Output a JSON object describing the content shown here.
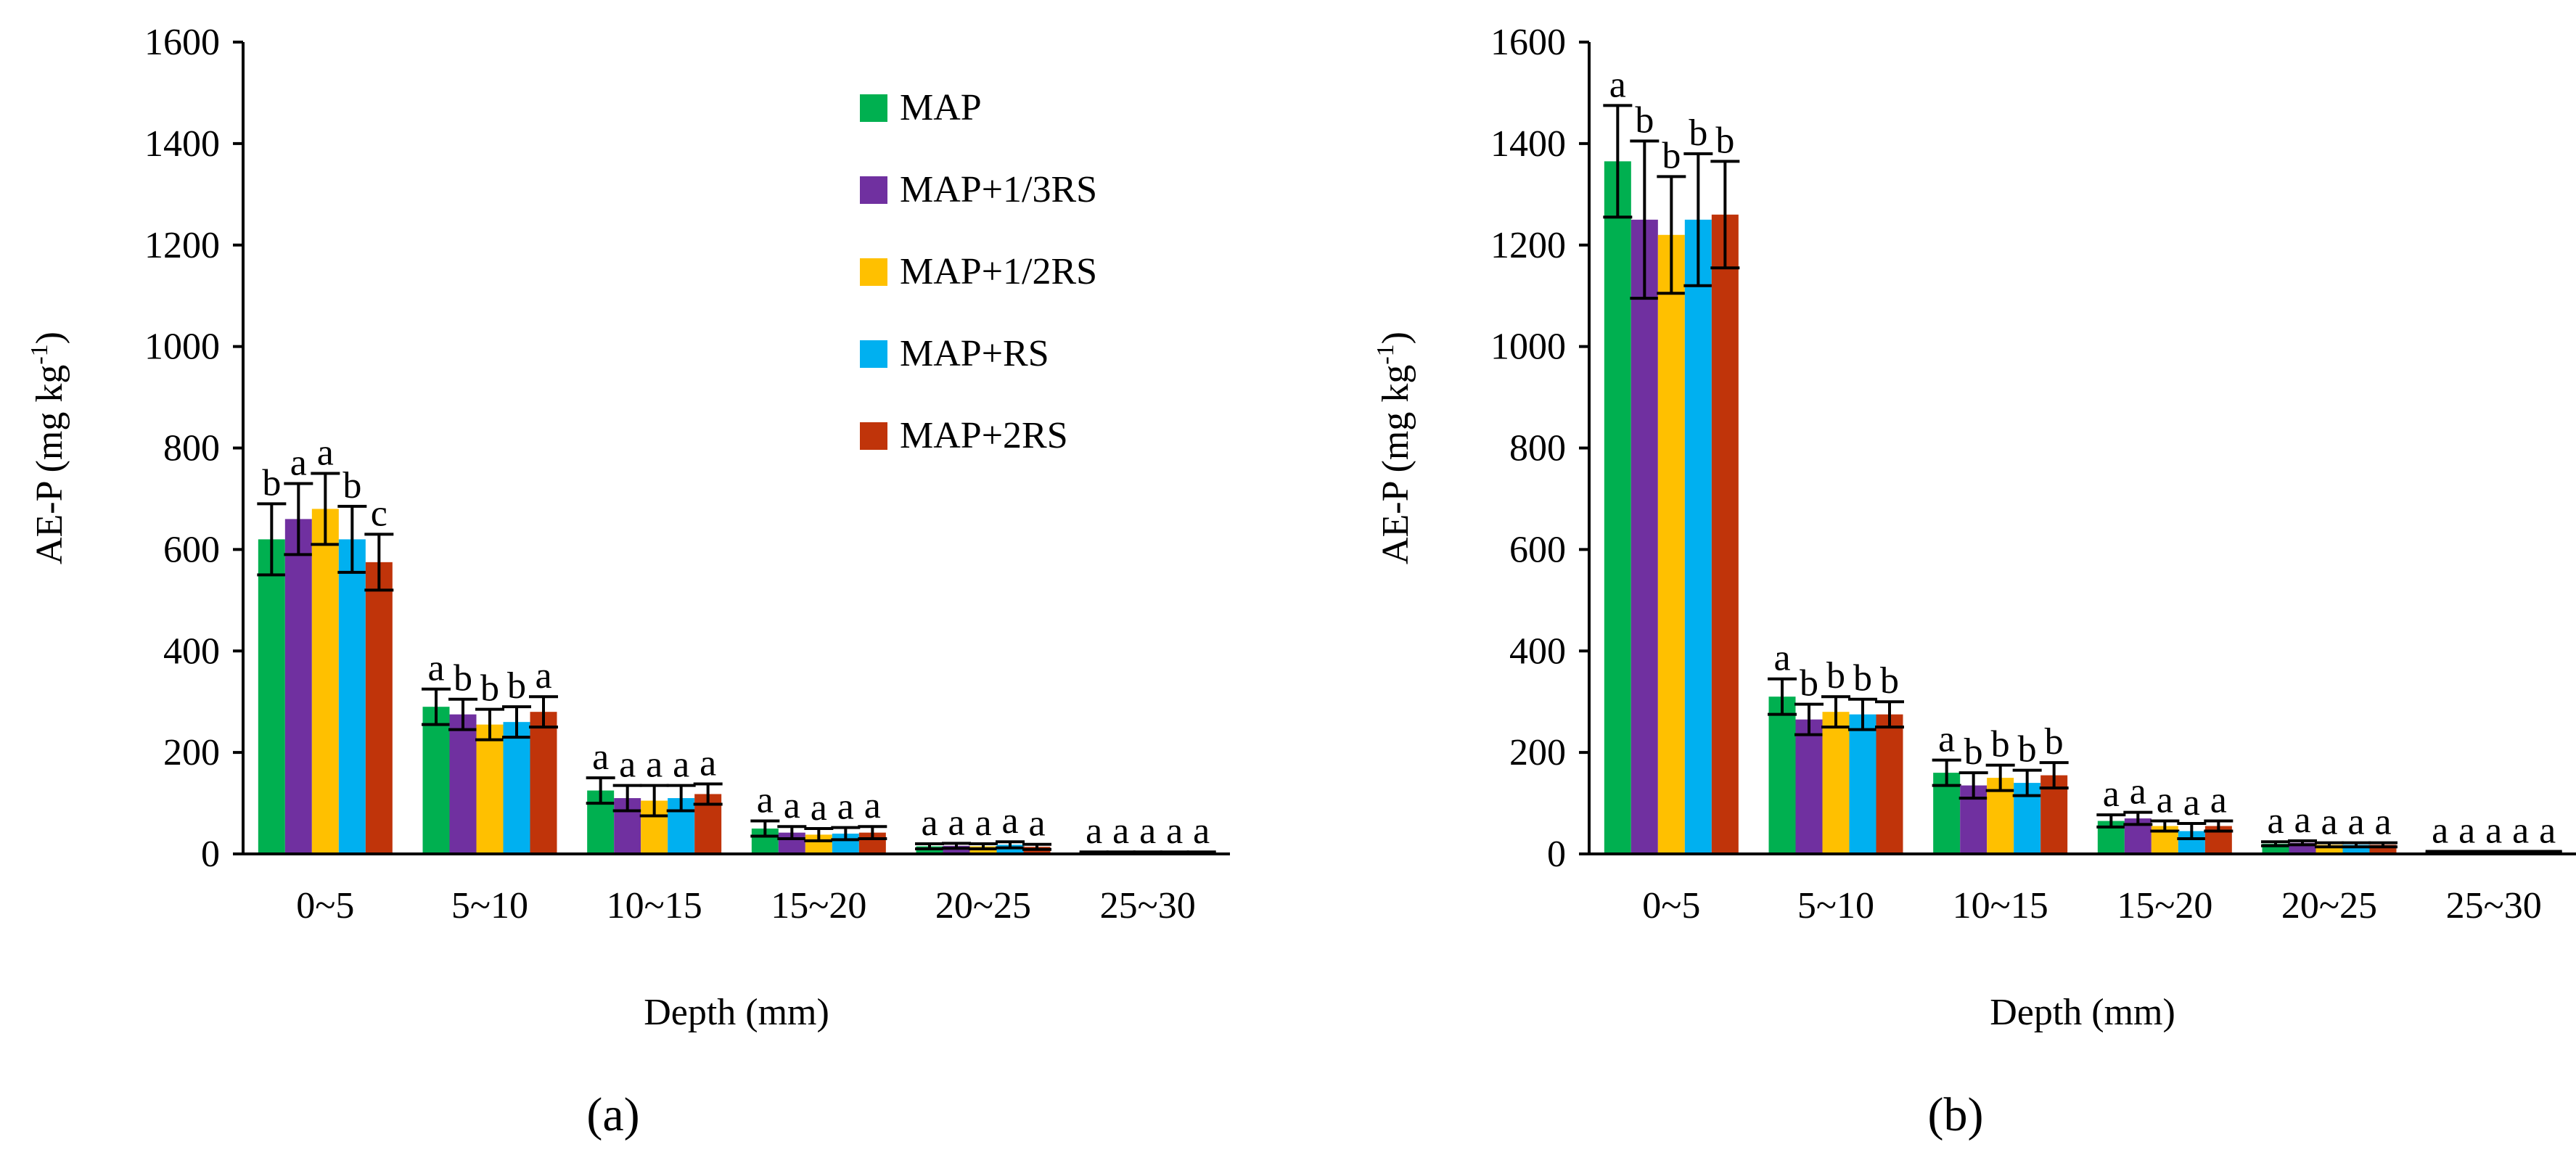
{
  "chart_data": [
    {
      "type": "bar",
      "panel_label": "(a)",
      "title": "",
      "xlabel": "Depth (mm)",
      "ylabel": "AE-P (mg kg-1)",
      "ylabel_parts": {
        "main": "AE-P (mg kg",
        "sup": "-1",
        "close": ")"
      },
      "ylim": [
        0,
        1600
      ],
      "yticks": [
        0,
        200,
        400,
        600,
        800,
        1000,
        1200,
        1400,
        1600
      ],
      "categories": [
        "0~5",
        "5~10",
        "10~15",
        "15~20",
        "20~25",
        "25~30"
      ],
      "legend_position": "top-right",
      "series": [
        {
          "name": "MAP",
          "color": "#00B050",
          "values": [
            620,
            290,
            125,
            50,
            15,
            3
          ],
          "errors": [
            70,
            35,
            25,
            15,
            5,
            1
          ],
          "letters": [
            "b",
            "a",
            "a",
            "a",
            "a",
            "a"
          ]
        },
        {
          "name": "MAP+1/3RS",
          "color": "#7030A0",
          "values": [
            660,
            275,
            110,
            42,
            16,
            3
          ],
          "errors": [
            70,
            30,
            25,
            12,
            5,
            1
          ],
          "letters": [
            "a",
            "b",
            "a",
            "a",
            "a",
            "a"
          ]
        },
        {
          "name": "MAP+1/2RS",
          "color": "#FFC000",
          "values": [
            680,
            255,
            105,
            38,
            15,
            3
          ],
          "errors": [
            70,
            30,
            30,
            12,
            5,
            1
          ],
          "letters": [
            "a",
            "b",
            "a",
            "a",
            "a",
            "a"
          ]
        },
        {
          "name": "MAP+RS",
          "color": "#00B0F0",
          "values": [
            620,
            260,
            110,
            40,
            18,
            3
          ],
          "errors": [
            65,
            30,
            25,
            12,
            6,
            1
          ],
          "letters": [
            "b",
            "b",
            "a",
            "a",
            "a",
            "a"
          ]
        },
        {
          "name": "MAP+2RS",
          "color": "#C0340A",
          "values": [
            575,
            280,
            118,
            42,
            14,
            3
          ],
          "errors": [
            55,
            30,
            20,
            12,
            5,
            1
          ],
          "letters": [
            "c",
            "a",
            "a",
            "a",
            "a",
            "a"
          ]
        }
      ]
    },
    {
      "type": "bar",
      "panel_label": "(b)",
      "title": "",
      "xlabel": "Depth (mm)",
      "ylabel": "AE-P (mg kg-1)",
      "ylabel_parts": {
        "main": "AE-P (mg kg",
        "sup": "-1",
        "close": ")"
      },
      "ylim": [
        0,
        1600
      ],
      "yticks": [
        0,
        200,
        400,
        600,
        800,
        1000,
        1200,
        1400,
        1600
      ],
      "categories": [
        "0~5",
        "5~10",
        "10~15",
        "15~20",
        "20~25",
        "25~30"
      ],
      "series": [
        {
          "name": "MAP",
          "color": "#00B050",
          "values": [
            1365,
            310,
            160,
            65,
            20,
            4
          ],
          "errors": [
            110,
            35,
            25,
            12,
            4,
            1
          ],
          "letters": [
            "a",
            "a",
            "a",
            "a",
            "a",
            "a"
          ]
        },
        {
          "name": "MAP+1/3RS",
          "color": "#7030A0",
          "values": [
            1250,
            265,
            135,
            70,
            22,
            4
          ],
          "errors": [
            155,
            30,
            25,
            12,
            4,
            1
          ],
          "letters": [
            "b",
            "b",
            "b",
            "a",
            "a",
            "a"
          ]
        },
        {
          "name": "MAP+1/2RS",
          "color": "#FFC000",
          "values": [
            1220,
            280,
            150,
            55,
            18,
            4
          ],
          "errors": [
            115,
            30,
            25,
            10,
            4,
            1
          ],
          "letters": [
            "b",
            "b",
            "b",
            "a",
            "a",
            "a"
          ]
        },
        {
          "name": "MAP+RS",
          "color": "#00B0F0",
          "values": [
            1250,
            275,
            140,
            45,
            18,
            4
          ],
          "errors": [
            130,
            30,
            25,
            15,
            4,
            1
          ],
          "letters": [
            "b",
            "b",
            "b",
            "a",
            "a",
            "a"
          ]
        },
        {
          "name": "MAP+2RS",
          "color": "#C0340A",
          "values": [
            1260,
            275,
            155,
            55,
            18,
            4
          ],
          "errors": [
            105,
            25,
            25,
            10,
            4,
            1
          ],
          "letters": [
            "b",
            "b",
            "b",
            "a",
            "a",
            "a"
          ]
        }
      ]
    }
  ]
}
